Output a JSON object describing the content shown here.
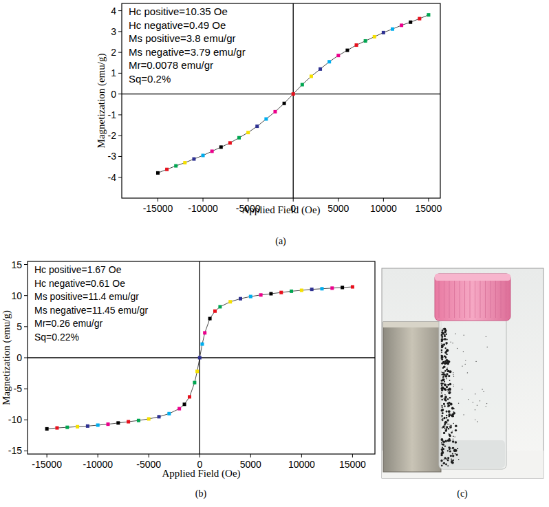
{
  "chart_data": [
    {
      "type": "line",
      "caption": "(a)",
      "x_label": "Applied Field (Oe)",
      "y_label": "Magnetization (emu/g)",
      "annotations": [
        "Hc positive=10.35 Oe",
        "Hc negative=0.49 Oe",
        "Ms positive=3.8 emu/gr",
        "Ms negative=3.79 emu/gr",
        "Mr=0.0078 emu/gr",
        "Sq=0.2%"
      ],
      "x": [
        -15000,
        -14000,
        -13000,
        -12000,
        -11000,
        -10000,
        -9000,
        -8000,
        -7000,
        -6000,
        -5000,
        -4000,
        -3000,
        -2000,
        -1000,
        0,
        1000,
        2000,
        3000,
        4000,
        5000,
        6000,
        7000,
        8000,
        9000,
        10000,
        11000,
        12000,
        13000,
        14000,
        15000
      ],
      "series": [
        {
          "values": [
            -3.79,
            -3.62,
            -3.45,
            -3.3,
            -3.12,
            -2.95,
            -2.75,
            -2.55,
            -2.35,
            -2.1,
            -1.85,
            -1.55,
            -1.2,
            -0.85,
            -0.45,
            0,
            0.45,
            0.85,
            1.2,
            1.55,
            1.85,
            2.1,
            2.35,
            2.55,
            2.75,
            2.95,
            3.12,
            3.3,
            3.45,
            3.62,
            3.8
          ],
          "colors": [
            "#000000",
            "#e8101c",
            "#00a651",
            "#f5e000",
            "#2e3192",
            "#00aeef",
            "#ec008c",
            "#000000",
            "#e8101c",
            "#00a651",
            "#f5e000",
            "#2e3192",
            "#00aeef",
            "#ec008c",
            "#000000",
            "#e8101c",
            "#00a651",
            "#f5e000",
            "#2e3192",
            "#00aeef",
            "#ec008c",
            "#000000",
            "#e8101c",
            "#00a651",
            "#f5e000",
            "#2e3192",
            "#00aeef",
            "#ec008c",
            "#000000",
            "#e8101c",
            "#00a651"
          ],
          "marker": "square",
          "line_style": "solid"
        }
      ],
      "xlim": [
        -19000,
        16300
      ],
      "ylim": [
        -5.0,
        4.35
      ],
      "xticks": [
        -15000,
        -10000,
        -5000,
        0,
        5000,
        10000,
        15000
      ],
      "yticks": [
        -4,
        -3,
        -2,
        -1,
        0,
        1,
        2,
        3,
        4
      ],
      "grid": false
    },
    {
      "type": "line",
      "caption": "(b)",
      "x_label": "Applied Field (Oe)",
      "y_label": "Magnetization (emu/g)",
      "annotations": [
        "Hc positive=1.67 Oe",
        "Hc negative=0.61 Oe",
        "Ms positive=11.4 emu/gr",
        "Ms negative=11.45 emu/gr",
        "Mr=0.26 emu/gr",
        "Sq=0.22%"
      ],
      "x": [
        -15000,
        -14000,
        -13000,
        -12000,
        -11000,
        -10000,
        -9000,
        -8000,
        -7000,
        -6000,
        -5000,
        -4000,
        -3000,
        -2000,
        -1500,
        -1000,
        -500,
        -250,
        0,
        250,
        500,
        1000,
        1500,
        2000,
        3000,
        4000,
        5000,
        6000,
        7000,
        8000,
        9000,
        10000,
        11000,
        12000,
        13000,
        14000,
        15000
      ],
      "series": [
        {
          "values": [
            -11.45,
            -11.3,
            -11.2,
            -11.1,
            -11.0,
            -10.85,
            -10.7,
            -10.5,
            -10.3,
            -10.1,
            -9.85,
            -9.5,
            -9.0,
            -8.2,
            -7.5,
            -6.3,
            -4.0,
            -2.2,
            0,
            2.2,
            4.0,
            6.3,
            7.5,
            8.2,
            9.0,
            9.5,
            9.85,
            10.1,
            10.3,
            10.5,
            10.7,
            10.85,
            11.0,
            11.1,
            11.2,
            11.3,
            11.4
          ],
          "colors": [
            "#000000",
            "#e8101c",
            "#00a651",
            "#f5e000",
            "#2e3192",
            "#00aeef",
            "#ec008c",
            "#000000",
            "#e8101c",
            "#00a651",
            "#f5e000",
            "#2e3192",
            "#00aeef",
            "#ec008c",
            "#000000",
            "#e8101c",
            "#00a651",
            "#f5e000",
            "#2e3192",
            "#00aeef",
            "#ec008c",
            "#000000",
            "#e8101c",
            "#00a651",
            "#f5e000",
            "#2e3192",
            "#00aeef",
            "#ec008c",
            "#000000",
            "#e8101c",
            "#00a651",
            "#f5e000",
            "#2e3192",
            "#00aeef",
            "#ec008c",
            "#000000",
            "#e8101c"
          ],
          "marker": "square",
          "line_style": "solid"
        }
      ],
      "xlim": [
        -16900,
        17200
      ],
      "ylim": [
        -15.5,
        15.5
      ],
      "xticks": [
        -15000,
        -10000,
        -5000,
        0,
        5000,
        10000,
        15000
      ],
      "yticks": [
        -15,
        -10,
        -5,
        0,
        5,
        10,
        15
      ],
      "grid": false
    }
  ],
  "image": {
    "caption": "(c)"
  }
}
